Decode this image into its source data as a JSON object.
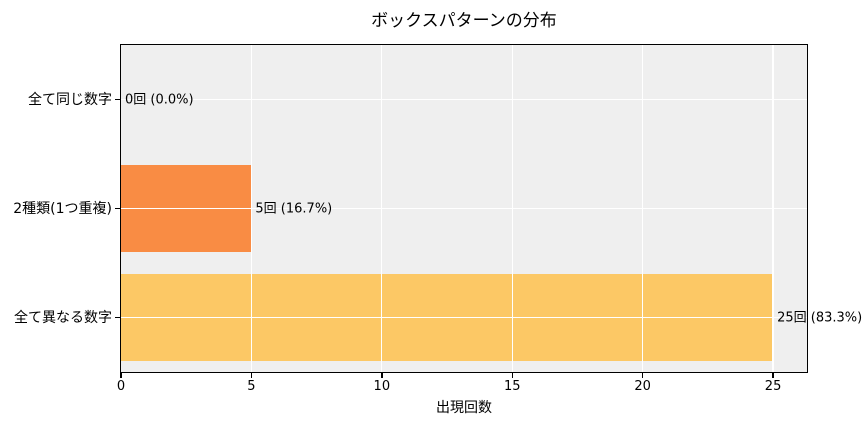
{
  "chart_data": {
    "type": "bar",
    "orientation": "horizontal",
    "title": "ボックスパターンの分布",
    "xlabel": "出現回数",
    "categories": [
      "全て同じ数字",
      "2種類(1つ重複)",
      "全て異なる数字"
    ],
    "values": [
      0,
      5,
      25
    ],
    "bar_labels": [
      "0回 (0.0%)",
      "5回 (16.7%)",
      "25回 (83.3%)"
    ],
    "bar_colors": [
      "#f98c44",
      "#f98c44",
      "#fcc865"
    ],
    "x_ticks": [
      0,
      5,
      10,
      15,
      20,
      25
    ],
    "xlim": [
      0,
      26.3
    ],
    "grid": true,
    "grid_color": "#ffffff",
    "plot_background": "#efefef",
    "figure_background": "#ffffff",
    "border_color": "#000000",
    "legend": "none"
  }
}
